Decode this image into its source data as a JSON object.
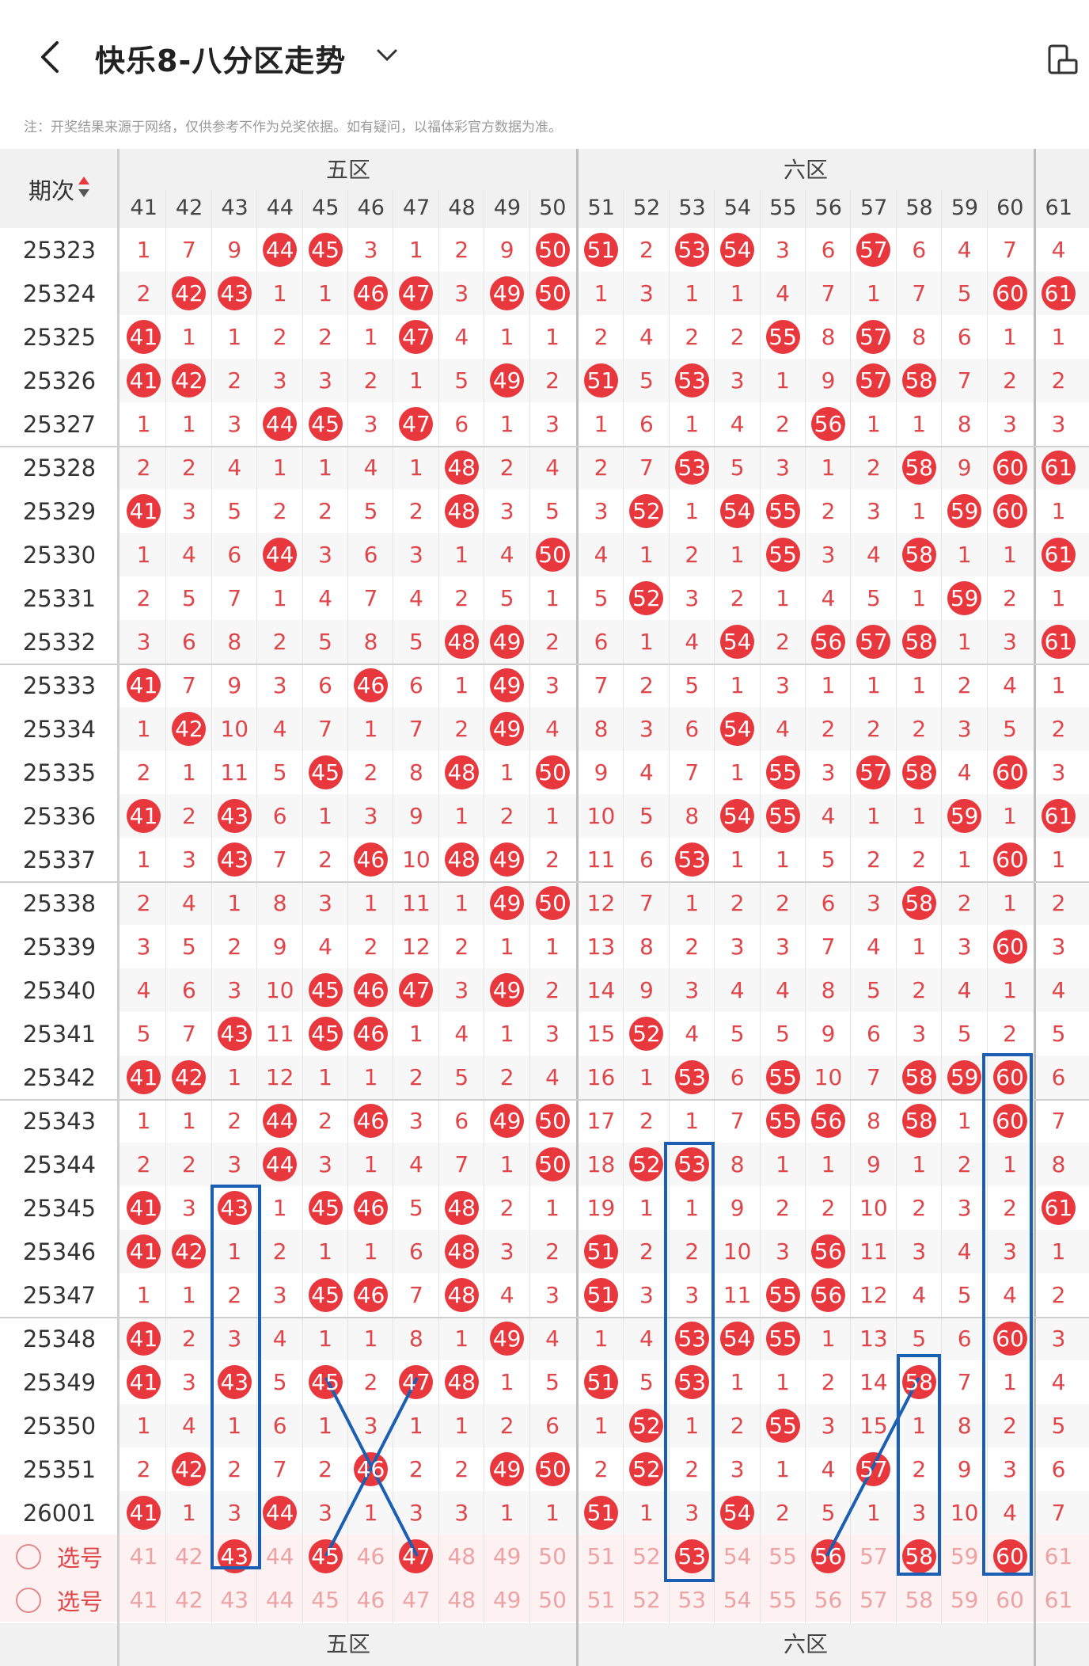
{
  "header": {
    "title": "快乐8-八分区走势",
    "note": "注：开奖结果来源于网络，仅供参考不作为兑奖依据。如有疑问，以福体彩官方数据为准。"
  },
  "table": {
    "issue_header": "期次",
    "zones": [
      "五区",
      "六区"
    ],
    "columns": [
      41,
      42,
      43,
      44,
      45,
      46,
      47,
      48,
      49,
      50,
      51,
      52,
      53,
      54,
      55,
      56,
      57,
      58,
      59,
      60,
      61
    ],
    "rows": [
      {
        "issue": "25323",
        "v": [
          1,
          7,
          9,
          44,
          45,
          3,
          1,
          2,
          9,
          50,
          51,
          2,
          53,
          54,
          3,
          6,
          57,
          6,
          4,
          7,
          4
        ]
      },
      {
        "issue": "25324",
        "v": [
          2,
          42,
          43,
          1,
          1,
          46,
          47,
          3,
          49,
          50,
          1,
          3,
          1,
          1,
          4,
          7,
          1,
          7,
          5,
          60,
          61
        ]
      },
      {
        "issue": "25325",
        "v": [
          41,
          1,
          1,
          2,
          2,
          1,
          47,
          4,
          1,
          1,
          2,
          4,
          2,
          2,
          55,
          8,
          57,
          8,
          6,
          1,
          1
        ]
      },
      {
        "issue": "25326",
        "v": [
          41,
          42,
          2,
          3,
          3,
          2,
          1,
          5,
          49,
          2,
          51,
          5,
          53,
          3,
          1,
          9,
          57,
          58,
          7,
          2,
          2
        ]
      },
      {
        "issue": "25327",
        "v": [
          1,
          1,
          3,
          44,
          45,
          3,
          47,
          6,
          1,
          3,
          1,
          6,
          1,
          4,
          2,
          56,
          1,
          1,
          8,
          3,
          3
        ]
      },
      {
        "issue": "25328",
        "v": [
          2,
          2,
          4,
          1,
          1,
          4,
          1,
          48,
          2,
          4,
          2,
          7,
          53,
          5,
          3,
          1,
          2,
          58,
          9,
          60,
          61
        ]
      },
      {
        "issue": "25329",
        "v": [
          41,
          3,
          5,
          2,
          2,
          5,
          2,
          48,
          3,
          5,
          3,
          52,
          1,
          54,
          55,
          2,
          3,
          1,
          59,
          60,
          1
        ]
      },
      {
        "issue": "25330",
        "v": [
          1,
          4,
          6,
          44,
          3,
          6,
          3,
          1,
          4,
          50,
          4,
          1,
          2,
          1,
          55,
          3,
          4,
          58,
          1,
          1,
          61
        ]
      },
      {
        "issue": "25331",
        "v": [
          2,
          5,
          7,
          1,
          4,
          7,
          4,
          2,
          5,
          1,
          5,
          52,
          3,
          2,
          1,
          4,
          5,
          1,
          59,
          2,
          1
        ]
      },
      {
        "issue": "25332",
        "v": [
          3,
          6,
          8,
          2,
          5,
          8,
          5,
          48,
          49,
          2,
          6,
          1,
          4,
          54,
          2,
          56,
          57,
          58,
          1,
          3,
          61
        ]
      },
      {
        "issue": "25333",
        "v": [
          41,
          7,
          9,
          3,
          6,
          46,
          6,
          1,
          49,
          3,
          7,
          2,
          5,
          1,
          3,
          1,
          1,
          1,
          2,
          4,
          1
        ]
      },
      {
        "issue": "25334",
        "v": [
          1,
          42,
          10,
          4,
          7,
          1,
          7,
          2,
          49,
          4,
          8,
          3,
          6,
          54,
          4,
          2,
          2,
          2,
          3,
          5,
          2
        ]
      },
      {
        "issue": "25335",
        "v": [
          2,
          1,
          11,
          5,
          45,
          2,
          8,
          48,
          1,
          50,
          9,
          4,
          7,
          1,
          55,
          3,
          57,
          58,
          4,
          60,
          3
        ]
      },
      {
        "issue": "25336",
        "v": [
          41,
          2,
          43,
          6,
          1,
          3,
          9,
          1,
          2,
          1,
          10,
          5,
          8,
          54,
          55,
          4,
          1,
          1,
          59,
          1,
          61
        ]
      },
      {
        "issue": "25337",
        "v": [
          1,
          3,
          43,
          7,
          2,
          46,
          10,
          48,
          49,
          2,
          11,
          6,
          53,
          1,
          1,
          5,
          2,
          2,
          1,
          60,
          1
        ]
      },
      {
        "issue": "25338",
        "v": [
          2,
          4,
          1,
          8,
          3,
          1,
          11,
          1,
          49,
          50,
          12,
          7,
          1,
          2,
          2,
          6,
          3,
          58,
          2,
          1,
          2
        ]
      },
      {
        "issue": "25339",
        "v": [
          3,
          5,
          2,
          9,
          4,
          2,
          12,
          2,
          1,
          1,
          13,
          8,
          2,
          3,
          3,
          7,
          4,
          1,
          3,
          60,
          3
        ]
      },
      {
        "issue": "25340",
        "v": [
          4,
          6,
          3,
          10,
          45,
          46,
          47,
          3,
          49,
          2,
          14,
          9,
          3,
          4,
          4,
          8,
          5,
          2,
          4,
          1,
          4
        ]
      },
      {
        "issue": "25341",
        "v": [
          5,
          7,
          43,
          11,
          45,
          46,
          1,
          4,
          1,
          3,
          15,
          52,
          4,
          5,
          5,
          9,
          6,
          3,
          5,
          2,
          5
        ]
      },
      {
        "issue": "25342",
        "v": [
          41,
          42,
          1,
          12,
          1,
          1,
          2,
          5,
          2,
          4,
          16,
          1,
          53,
          6,
          55,
          10,
          7,
          58,
          59,
          60,
          6
        ]
      },
      {
        "issue": "25343",
        "v": [
          1,
          1,
          2,
          44,
          2,
          46,
          3,
          6,
          49,
          50,
          17,
          2,
          1,
          7,
          55,
          56,
          8,
          58,
          1,
          60,
          7
        ]
      },
      {
        "issue": "25344",
        "v": [
          2,
          2,
          3,
          44,
          3,
          1,
          4,
          7,
          1,
          50,
          18,
          52,
          53,
          8,
          1,
          1,
          9,
          1,
          2,
          1,
          8
        ]
      },
      {
        "issue": "25345",
        "v": [
          41,
          3,
          43,
          1,
          45,
          46,
          5,
          48,
          2,
          1,
          19,
          1,
          1,
          9,
          2,
          2,
          10,
          2,
          3,
          2,
          61
        ]
      },
      {
        "issue": "25346",
        "v": [
          41,
          42,
          1,
          2,
          1,
          1,
          6,
          48,
          3,
          2,
          51,
          2,
          2,
          10,
          3,
          56,
          11,
          3,
          4,
          3,
          1
        ]
      },
      {
        "issue": "25347",
        "v": [
          1,
          1,
          2,
          3,
          45,
          46,
          7,
          48,
          4,
          3,
          51,
          3,
          3,
          11,
          55,
          56,
          12,
          4,
          5,
          4,
          2
        ]
      },
      {
        "issue": "25348",
        "v": [
          41,
          2,
          3,
          4,
          1,
          1,
          8,
          1,
          49,
          4,
          1,
          4,
          53,
          54,
          55,
          1,
          13,
          5,
          6,
          60,
          3
        ]
      },
      {
        "issue": "25349",
        "v": [
          41,
          3,
          43,
          5,
          45,
          2,
          47,
          48,
          1,
          5,
          51,
          5,
          53,
          1,
          1,
          2,
          14,
          58,
          7,
          1,
          4
        ]
      },
      {
        "issue": "25350",
        "v": [
          1,
          4,
          1,
          6,
          1,
          3,
          1,
          1,
          2,
          6,
          1,
          52,
          1,
          2,
          55,
          3,
          15,
          1,
          8,
          2,
          5
        ]
      },
      {
        "issue": "25351",
        "v": [
          2,
          42,
          2,
          7,
          2,
          46,
          2,
          2,
          49,
          50,
          2,
          52,
          2,
          3,
          1,
          4,
          57,
          2,
          9,
          3,
          6
        ]
      },
      {
        "issue": "26001",
        "v": [
          41,
          1,
          3,
          44,
          3,
          1,
          3,
          3,
          1,
          1,
          51,
          1,
          3,
          54,
          2,
          5,
          1,
          3,
          10,
          4,
          7
        ]
      }
    ],
    "select_label": "选号",
    "select_rows": [
      {
        "picked": [
          43,
          45,
          47,
          53,
          56,
          58,
          60
        ]
      },
      {
        "picked": []
      }
    ]
  }
}
